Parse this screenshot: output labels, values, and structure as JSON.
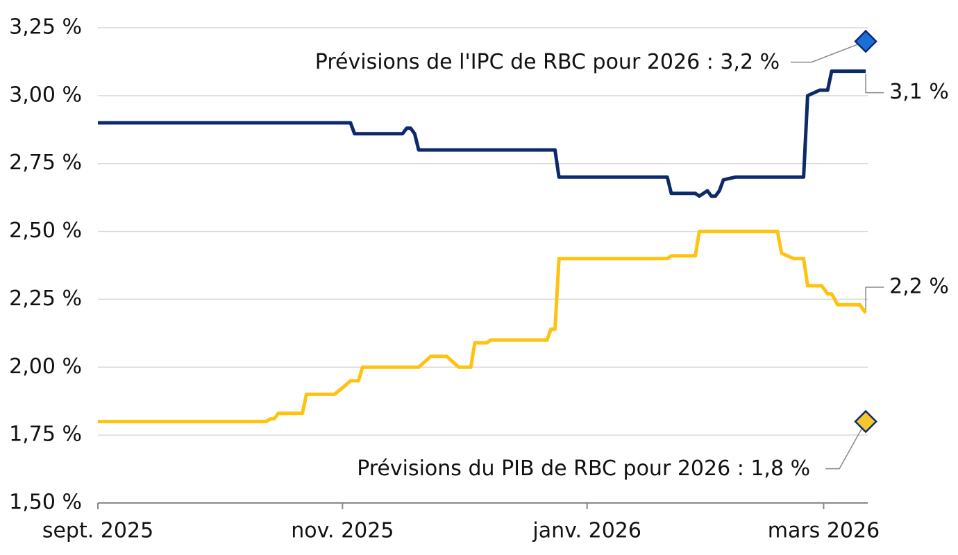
{
  "chart_data": {
    "type": "line",
    "ylim": [
      1.5,
      3.25
    ],
    "yticks": [
      {
        "value": 1.5,
        "label": "1,50 %"
      },
      {
        "value": 1.75,
        "label": "1,75 %"
      },
      {
        "value": 2.0,
        "label": "2,00 %"
      },
      {
        "value": 2.25,
        "label": "2,25 %"
      },
      {
        "value": 2.5,
        "label": "2,50 %"
      },
      {
        "value": 2.75,
        "label": "2,75 %"
      },
      {
        "value": 3.0,
        "label": "3,00 %"
      },
      {
        "value": 3.25,
        "label": "3,25 %"
      }
    ],
    "xlim": [
      0,
      192
    ],
    "xticks": [
      {
        "value": 0,
        "label": "sept. 2025"
      },
      {
        "value": 61,
        "label": "nov. 2025"
      },
      {
        "value": 122,
        "label": "janv. 2026"
      },
      {
        "value": 181,
        "label": "mars 2026"
      }
    ],
    "grid": true,
    "series": [
      {
        "color": "#0c2a69",
        "x": [
          0,
          63,
          64,
          76,
          77,
          78,
          79,
          80,
          114,
          115,
          142,
          143,
          149,
          150,
          152,
          153,
          154,
          155,
          156,
          159,
          176,
          177,
          180,
          182,
          183,
          191.5
        ],
        "values": [
          2.9,
          2.9,
          2.86,
          2.86,
          2.88,
          2.88,
          2.86,
          2.8,
          2.8,
          2.7,
          2.7,
          2.64,
          2.64,
          2.63,
          2.65,
          2.63,
          2.63,
          2.65,
          2.69,
          2.7,
          2.7,
          3.0,
          3.02,
          3.02,
          3.09,
          3.09
        ],
        "end_label": "3,1 %"
      },
      {
        "color": "#ffc20e",
        "x": [
          0,
          42,
          43,
          44,
          45,
          51,
          52,
          59,
          61.5,
          63,
          65,
          66,
          80,
          83,
          87,
          90,
          93,
          94,
          97,
          98,
          112,
          113,
          114,
          115,
          142,
          143,
          149,
          150,
          169.5,
          170.5,
          173.5,
          176,
          177,
          180.5,
          182,
          183,
          184.5,
          190,
          191.5
        ],
        "values": [
          1.8,
          1.8,
          1.81,
          1.81,
          1.83,
          1.83,
          1.9,
          1.9,
          1.93,
          1.95,
          1.95,
          2.0,
          2.0,
          2.04,
          2.04,
          2.0,
          2.0,
          2.09,
          2.09,
          2.1,
          2.1,
          2.14,
          2.14,
          2.4,
          2.4,
          2.41,
          2.41,
          2.5,
          2.5,
          2.42,
          2.4,
          2.4,
          2.3,
          2.3,
          2.27,
          2.27,
          2.23,
          2.23,
          2.2
        ],
        "end_label": "2,2 %"
      }
    ],
    "forecasts": [
      {
        "label": "Prévisions de l'IPC de RBC pour 2026 : 3,2 %",
        "x": 191.5,
        "value": 3.2,
        "color": "#1a6fd6"
      },
      {
        "label": "Prévisions du PIB de RBC pour 2026 : 1,8 %",
        "x": 191.5,
        "value": 1.8,
        "color": "#f7c62f"
      }
    ]
  }
}
